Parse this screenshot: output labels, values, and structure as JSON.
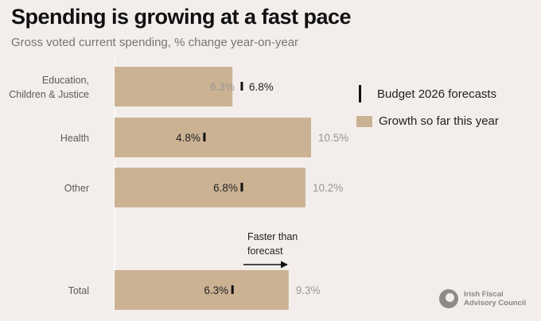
{
  "header": {
    "title": "Spending is growing at a fast pace",
    "subtitle": "Gross voted current spending, % change year-on-year"
  },
  "legend": {
    "forecast_label": "Budget 2026 forecasts",
    "growth_label": "Growth so far this year"
  },
  "annotation": {
    "line1": "Faster than",
    "line2": "forecast"
  },
  "logo": {
    "line1": "Irish Fiscal",
    "line2": "Advisory Council"
  },
  "colors": {
    "bar": "#cbb293",
    "marker": "#111111",
    "label_inside": "#222222",
    "label_muted": "#9a9594"
  },
  "chart_data": {
    "type": "bar",
    "orientation": "horizontal",
    "categories": [
      [
        "Education,",
        "Children & Justice"
      ],
      [
        "Health"
      ],
      [
        "Other"
      ],
      [
        "Total"
      ]
    ],
    "series": [
      {
        "name": "Growth so far this year",
        "values": [
          6.3,
          10.5,
          10.2,
          9.3
        ]
      },
      {
        "name": "Budget 2026 forecasts",
        "values": [
          6.8,
          4.8,
          6.8,
          6.3
        ]
      }
    ],
    "bar_labels": [
      "6.3%",
      "10.5%",
      "10.2%",
      "9.3%"
    ],
    "forecast_labels": [
      "6.8%",
      "4.8%",
      "6.8%",
      "6.3%"
    ],
    "xlim": [
      0,
      10.5
    ],
    "grid": false
  }
}
